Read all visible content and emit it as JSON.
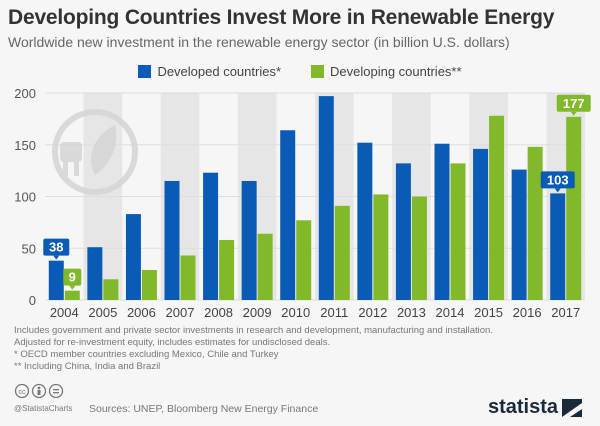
{
  "chart_data": {
    "type": "bar",
    "title": "Developing Countries Invest More in Renewable Energy",
    "subtitle": "Worldwide new investment in the renewable energy sector (in billion U.S. dollars)",
    "categories": [
      "2004",
      "2005",
      "2006",
      "2007",
      "2008",
      "2009",
      "2010",
      "2011",
      "2012",
      "2013",
      "2014",
      "2015",
      "2016",
      "2017"
    ],
    "series": [
      {
        "name": "Developed countries*",
        "color": "#0a5bb5",
        "values": [
          38,
          51,
          83,
          115,
          123,
          115,
          164,
          197,
          152,
          132,
          151,
          146,
          126,
          103
        ]
      },
      {
        "name": "Developing countries**",
        "color": "#82b92a",
        "values": [
          9,
          20,
          29,
          43,
          58,
          64,
          77,
          91,
          102,
          100,
          132,
          178,
          148,
          177
        ]
      }
    ],
    "data_labels": [
      {
        "series": 0,
        "category": "2004",
        "text": "38"
      },
      {
        "series": 1,
        "category": "2004",
        "text": "9"
      },
      {
        "series": 0,
        "category": "2017",
        "text": "103"
      },
      {
        "series": 1,
        "category": "2017",
        "text": "177"
      }
    ],
    "ylim": [
      0,
      200
    ],
    "yticks": [
      "0",
      "50",
      "100",
      "150",
      "200"
    ],
    "grid": true,
    "legend": "top"
  },
  "notes": [
    "Includes government and private sector investments in research and development, manufacturing and installation.",
    "Adjusted for re-investment equity, includes estimates for undisclosed deals.",
    "*   OECD member countries excluding Mexico, Chile and Turkey",
    "** Including China, India and Brazil"
  ],
  "footer": {
    "handle": "@StatistaCharts",
    "sources": "Sources: UNEP, Bloomberg New Energy Finance",
    "logo": "statista"
  }
}
